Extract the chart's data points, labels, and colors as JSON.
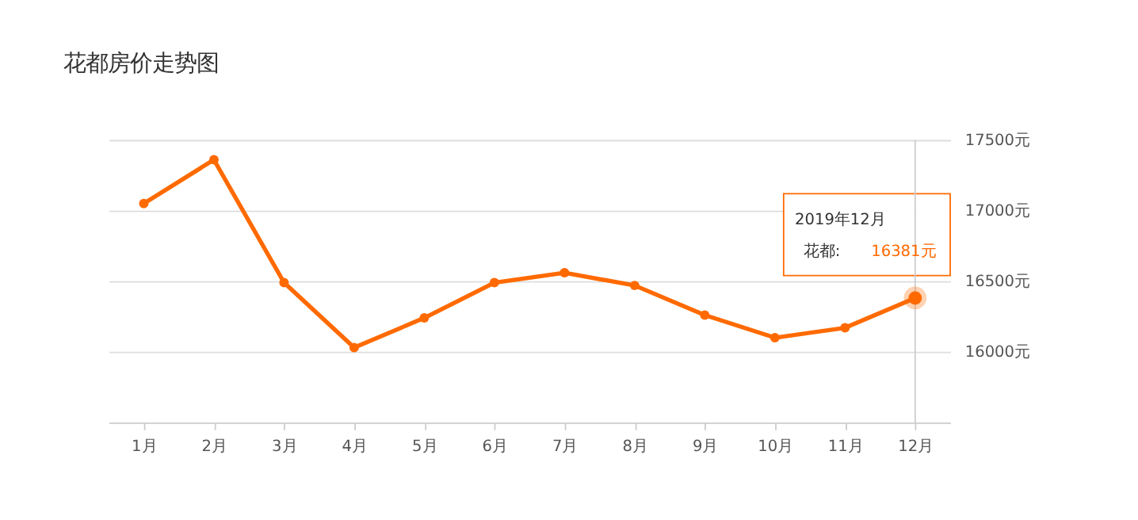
{
  "chart_data": {
    "type": "line",
    "title": "花都房价走势图",
    "categories": [
      "1月",
      "2月",
      "3月",
      "4月",
      "5月",
      "6月",
      "7月",
      "8月",
      "9月",
      "10月",
      "11月",
      "12月"
    ],
    "series": [
      {
        "name": "花都",
        "color": "#ff6a00",
        "values": [
          17050,
          17360,
          16490,
          16030,
          16240,
          16490,
          16560,
          16470,
          16260,
          16100,
          16170,
          16381
        ]
      }
    ],
    "value_labels": [
      null,
      null,
      null,
      null,
      null,
      null,
      null,
      null,
      null,
      null,
      null,
      "16381元"
    ],
    "annotations": [
      "2019年12月",
      ":"
    ],
    "ref_lines": [
      {
        "axis": "x",
        "value": "12月",
        "color": "#cccccc"
      }
    ],
    "ylim": [
      15500,
      17500
    ],
    "yticks": [
      {
        "value": 16000,
        "label": "16000元"
      },
      {
        "value": 16500,
        "label": "16500元"
      },
      {
        "value": 17000,
        "label": "17000元"
      },
      {
        "value": 17500,
        "label": "17500元"
      }
    ],
    "grid": "y",
    "marker": "circle",
    "legend": false
  }
}
